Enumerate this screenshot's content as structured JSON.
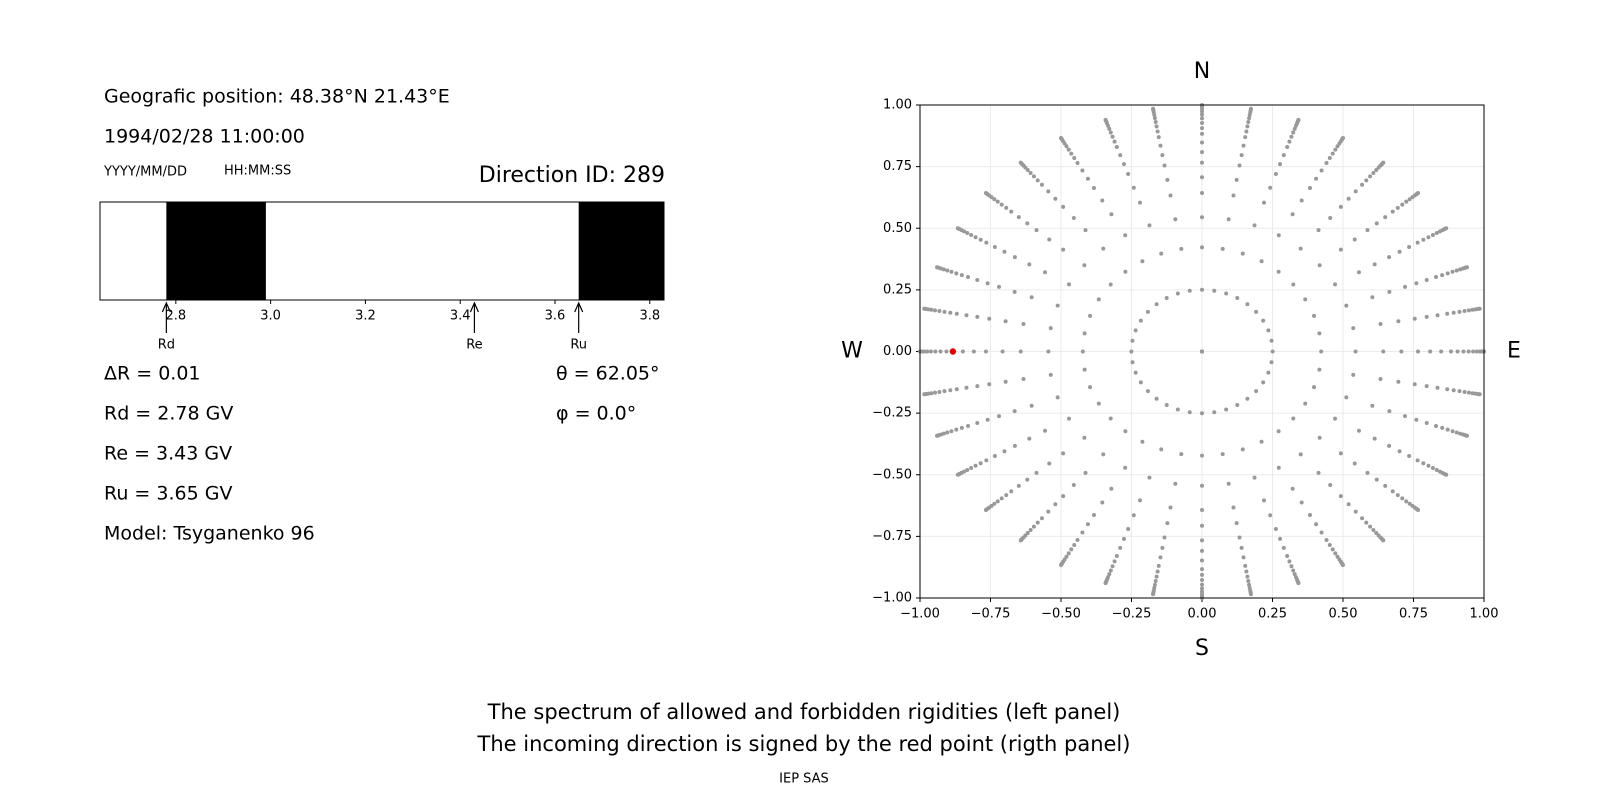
{
  "info": {
    "position": "Geografic position: 48.38°N 21.43°E",
    "datetime": "1994/02/28 11:00:00",
    "date_format": "YYYY/MM/DD",
    "time_format": "HH:MM:SS",
    "direction_id": "Direction ID: 289",
    "delta_r": "ΔR = 0.01",
    "rd": "Rd = 2.78 GV",
    "re": "Re = 3.43 GV",
    "ru": "Ru = 3.65 GV",
    "model": "Model: Tsyganenko 96",
    "theta": "θ = 62.05°",
    "phi": "φ = 0.0°"
  },
  "chart_data": [
    {
      "type": "spectrum",
      "xlim": [
        2.64,
        3.83
      ],
      "xticks": [
        2.8,
        {
          "value": 3,
          "label": "3.0"
        },
        3.2,
        3.4,
        3.6,
        3.8
      ],
      "bands": [
        {
          "from": 2.78,
          "to": 2.99
        },
        {
          "from": 3.65,
          "to": 3.83
        }
      ],
      "band_color": "#000000",
      "markers": [
        {
          "label": "Rd",
          "value": 2.78
        },
        {
          "label": "Re",
          "value": 3.43
        },
        {
          "label": "Ru",
          "value": 3.65
        }
      ]
    },
    {
      "type": "scatter",
      "xlim": [
        -1,
        1
      ],
      "ylim": [
        -1,
        1
      ],
      "xticks": [
        {
          "value": -1,
          "label": "−1.00"
        },
        {
          "value": -0.75,
          "label": "−0.75"
        },
        {
          "value": -0.5,
          "label": "−0.50"
        },
        {
          "value": -0.25,
          "label": "−0.25"
        },
        {
          "value": 0,
          "label": "0.00"
        },
        {
          "value": 0.25,
          "label": "0.25"
        },
        {
          "value": 0.5,
          "label": "0.50"
        },
        {
          "value": 0.75,
          "label": "0.75"
        },
        {
          "value": 1,
          "label": "1.00"
        }
      ],
      "yticks": [
        {
          "value": -1,
          "label": "−1.00"
        },
        {
          "value": -0.75,
          "label": "−0.75"
        },
        {
          "value": -0.5,
          "label": "−0.50"
        },
        {
          "value": -0.25,
          "label": "−0.25"
        },
        {
          "value": 0,
          "label": "0.00"
        },
        {
          "value": 0.25,
          "label": "0.25"
        },
        {
          "value": 0.5,
          "label": "0.50"
        },
        {
          "value": 0.75,
          "label": "0.75"
        },
        {
          "value": 1,
          "label": "1.00"
        }
      ],
      "grid": true,
      "compass": {
        "top": "N",
        "bottom": "S",
        "left": "W",
        "right": "E"
      },
      "zenith_angles": [
        0,
        14.5,
        25,
        33,
        40,
        45,
        50,
        54,
        58,
        62,
        65,
        68,
        71,
        74,
        77,
        80,
        83,
        86,
        90
      ],
      "azimuths": [
        0,
        10,
        20,
        30,
        40,
        50,
        60,
        70,
        80,
        90,
        100,
        110,
        120,
        130,
        140,
        150,
        160,
        170,
        180,
        190,
        200,
        210,
        220,
        230,
        240,
        250,
        260,
        270,
        280,
        290,
        300,
        310,
        320,
        330,
        340,
        350
      ],
      "color": "#999999",
      "highlight": {
        "zenith": 62.05,
        "azimuth": 0,
        "color": "#dd0000"
      }
    }
  ],
  "footer": {
    "line1": "The spectrum of allowed and forbidden rigidities (left panel)",
    "line2": "The incoming direction is signed by the red point (rigth panel)",
    "credit": "IEP SAS"
  }
}
